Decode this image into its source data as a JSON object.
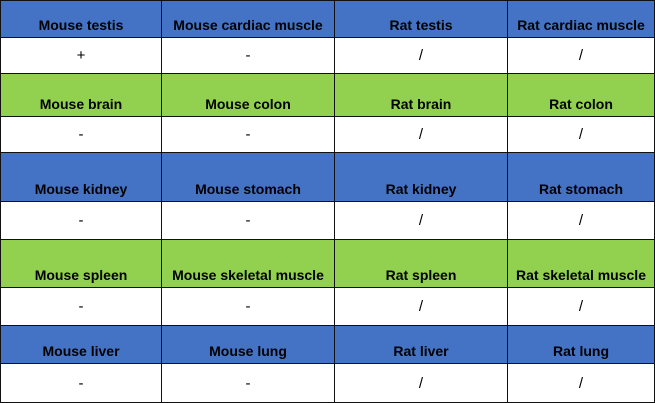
{
  "colors": {
    "blue_header": "#4472c4",
    "green_header": "#92d050",
    "value_row": "#ffffff"
  },
  "rows": [
    {
      "type": "header",
      "color": "blue",
      "cells": [
        "Mouse testis",
        "Mouse cardiac muscle",
        "Rat testis",
        "Rat cardiac muscle"
      ]
    },
    {
      "type": "value",
      "cells": [
        "+",
        "-",
        "/",
        "/"
      ]
    },
    {
      "type": "header",
      "color": "green",
      "cells": [
        "Mouse brain",
        "Mouse colon",
        "Rat brain",
        "Rat colon"
      ]
    },
    {
      "type": "value",
      "cells": [
        "-",
        "-",
        "/",
        "/"
      ]
    },
    {
      "type": "header",
      "color": "blue",
      "cells": [
        "Mouse kidney",
        "Mouse stomach",
        "Rat kidney",
        "Rat stomach"
      ]
    },
    {
      "type": "value",
      "cells": [
        "-",
        "-",
        "/",
        "/"
      ]
    },
    {
      "type": "header",
      "color": "green",
      "cells": [
        "Mouse spleen",
        "Mouse skeletal muscle",
        "Rat spleen",
        "Rat skeletal muscle"
      ]
    },
    {
      "type": "value",
      "cells": [
        "-",
        "-",
        "/",
        "/"
      ]
    },
    {
      "type": "header",
      "color": "blue",
      "cells": [
        "Mouse liver",
        "Mouse lung",
        "Rat liver",
        "Rat lung"
      ]
    },
    {
      "type": "value",
      "cells": [
        "-",
        "-",
        "/",
        "/"
      ]
    }
  ]
}
